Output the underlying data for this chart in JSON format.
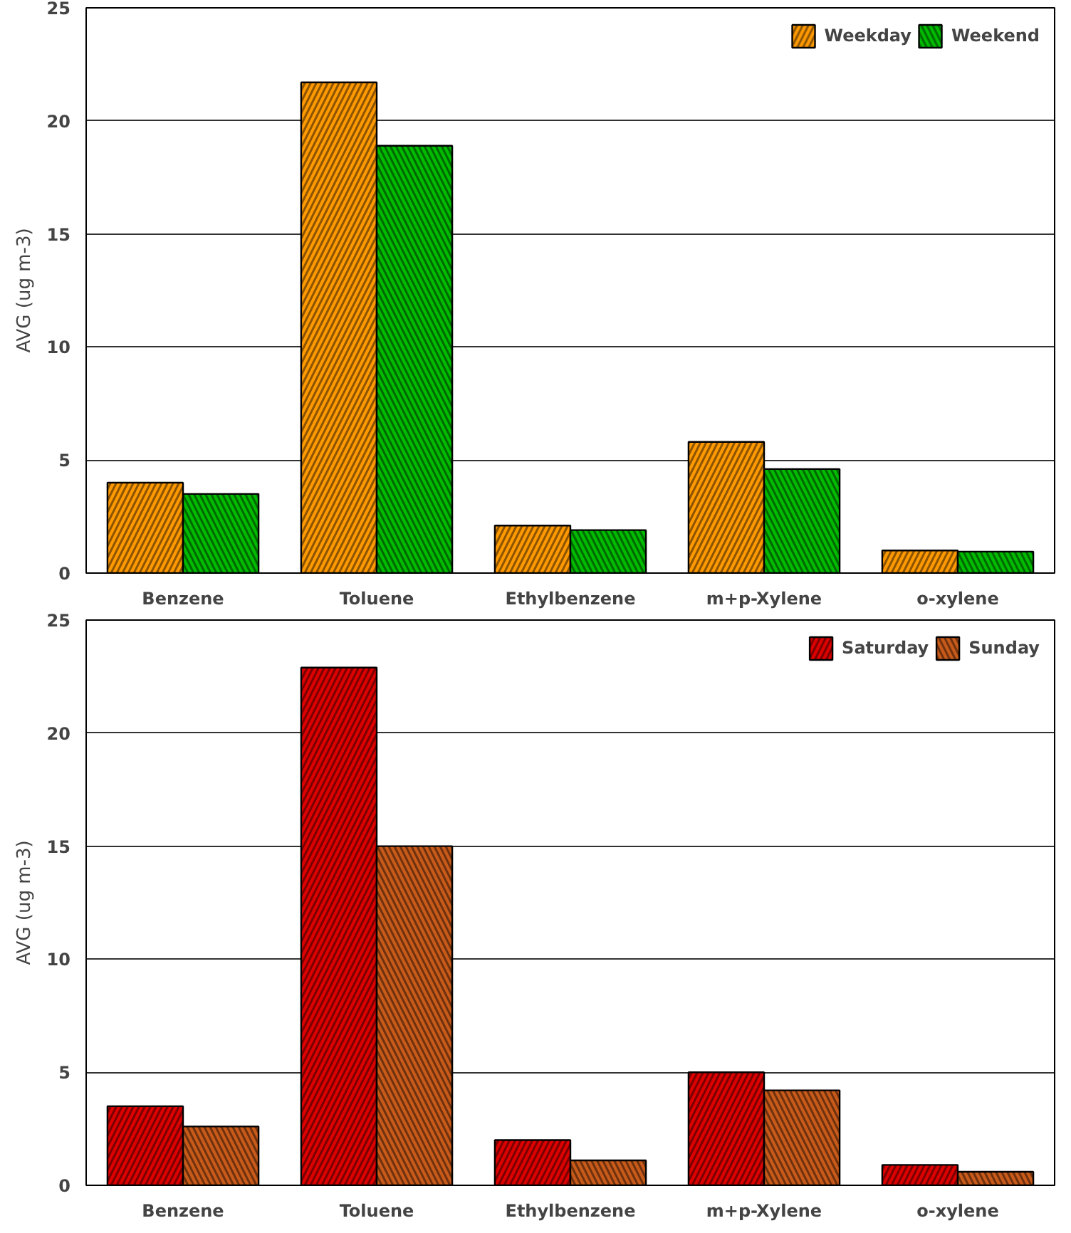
{
  "chart_data": [
    {
      "type": "bar",
      "ylabel": "AVG (ug m-3)",
      "categories": [
        "Benzene",
        "Toluene",
        "Ethylbenzene",
        "m+p-Xylene",
        "o-xylene"
      ],
      "series": [
        {
          "name": "Weekday",
          "color": "#ff9900",
          "values": [
            4.0,
            21.7,
            2.1,
            5.8,
            1.0
          ]
        },
        {
          "name": "Weekend",
          "color": "#00bb00",
          "values": [
            3.5,
            18.9,
            1.9,
            4.6,
            0.95
          ]
        }
      ],
      "ylim": [
        0,
        25
      ],
      "yticks": [
        0,
        5,
        10,
        15,
        20,
        25
      ],
      "grid": "y",
      "legend": "top right"
    },
    {
      "type": "bar",
      "ylabel": "AVG (ug m-3)",
      "categories": [
        "Benzene",
        "Toluene",
        "Ethylbenzene",
        "m+p-Xylene",
        "o-xylene"
      ],
      "series": [
        {
          "name": "Saturday",
          "color": "#dd0000",
          "values": [
            3.5,
            22.9,
            2.0,
            5.0,
            0.9
          ]
        },
        {
          "name": "Sunday",
          "color": "#c85a1a",
          "values": [
            2.6,
            15.0,
            1.1,
            4.2,
            0.6
          ]
        }
      ],
      "ylim": [
        0,
        25
      ],
      "yticks": [
        0,
        5,
        10,
        15,
        20,
        25
      ],
      "grid": "y",
      "legend": "top right"
    }
  ]
}
